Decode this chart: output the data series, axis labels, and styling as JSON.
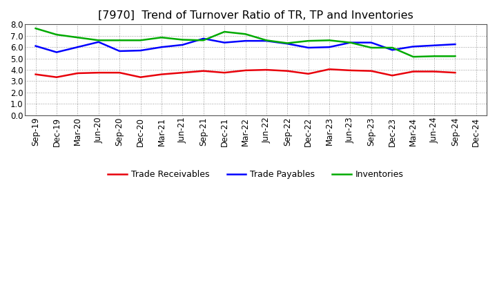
{
  "title": "[7970]  Trend of Turnover Ratio of TR, TP and Inventories",
  "x_labels": [
    "Sep-19",
    "Dec-19",
    "Mar-20",
    "Jun-20",
    "Sep-20",
    "Dec-20",
    "Mar-21",
    "Jun-21",
    "Sep-21",
    "Dec-21",
    "Mar-22",
    "Jun-22",
    "Sep-22",
    "Dec-22",
    "Mar-23",
    "Jun-23",
    "Sep-23",
    "Dec-23",
    "Mar-24",
    "Jun-24",
    "Sep-24",
    "Dec-24"
  ],
  "trade_receivables": [
    3.6,
    3.35,
    3.7,
    3.75,
    3.75,
    3.35,
    3.6,
    3.75,
    3.9,
    3.75,
    3.95,
    4.0,
    3.9,
    3.65,
    4.05,
    3.95,
    3.9,
    3.5,
    3.85,
    3.85,
    3.75,
    null
  ],
  "trade_payables": [
    6.1,
    5.55,
    6.0,
    6.45,
    5.65,
    5.7,
    6.0,
    6.2,
    6.75,
    6.4,
    6.55,
    6.55,
    6.3,
    5.95,
    6.0,
    6.4,
    6.4,
    5.75,
    6.05,
    6.15,
    6.25,
    null
  ],
  "inventories": [
    7.65,
    7.1,
    6.85,
    6.6,
    6.6,
    6.6,
    6.85,
    6.65,
    6.6,
    7.35,
    7.15,
    6.6,
    6.35,
    6.55,
    6.6,
    6.4,
    5.95,
    5.95,
    5.15,
    5.2,
    5.2,
    null
  ],
  "tr_color": "#e8000a",
  "tp_color": "#0000ff",
  "inv_color": "#00aa00",
  "legend_labels": [
    "Trade Receivables",
    "Trade Payables",
    "Inventories"
  ],
  "ylim": [
    0.0,
    8.0
  ],
  "yticks": [
    0.0,
    1.0,
    2.0,
    3.0,
    4.0,
    5.0,
    6.0,
    7.0,
    8.0
  ],
  "title_fontsize": 11.5,
  "tick_fontsize": 8.5,
  "legend_fontsize": 9,
  "background_color": "#ffffff",
  "line_width": 1.8,
  "grid_color": "#999999",
  "spine_color": "#555555"
}
